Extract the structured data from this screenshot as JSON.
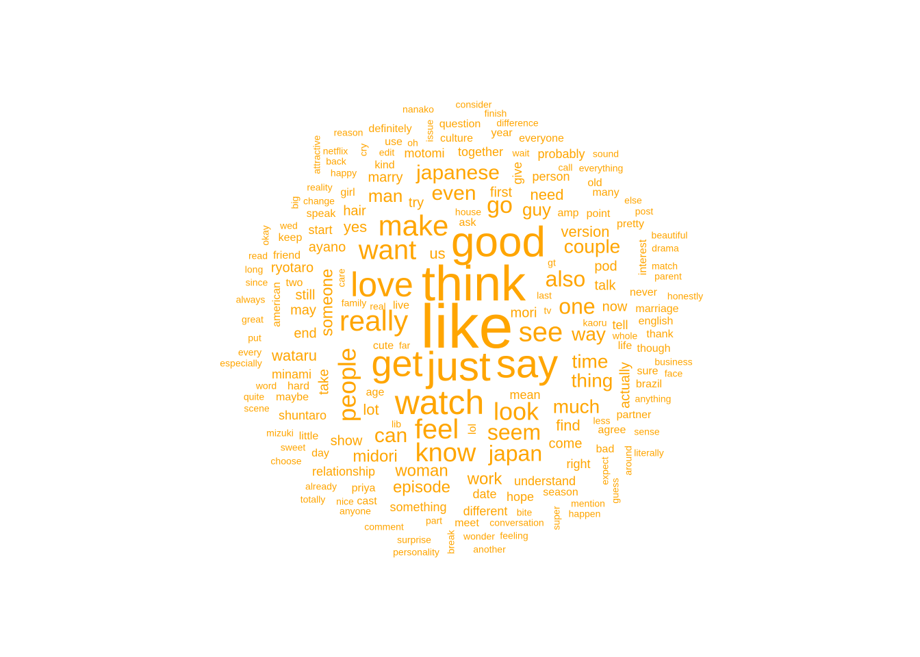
{
  "color": "#FFA500",
  "words": [
    {
      "t": "like",
      "s": 90
    },
    {
      "t": "think",
      "s": 72
    },
    {
      "t": "good",
      "s": 62
    },
    {
      "t": "just",
      "s": 60
    },
    {
      "t": "say",
      "s": 58
    },
    {
      "t": "get",
      "s": 54
    },
    {
      "t": "watch",
      "s": 50
    },
    {
      "t": "love",
      "s": 50
    },
    {
      "t": "make",
      "s": 42
    },
    {
      "t": "really",
      "s": 42
    },
    {
      "t": "want",
      "s": 40
    },
    {
      "t": "feel",
      "s": 40
    },
    {
      "t": "see",
      "s": 40
    },
    {
      "t": "know",
      "s": 38
    },
    {
      "t": "look",
      "s": 36
    },
    {
      "t": "people",
      "s": 36
    },
    {
      "t": "go",
      "s": 34
    },
    {
      "t": "seem",
      "s": 32
    },
    {
      "t": "japan",
      "s": 32
    },
    {
      "t": "also",
      "s": 32
    },
    {
      "t": "one",
      "s": 32
    },
    {
      "t": "japanese",
      "s": 30
    },
    {
      "t": "even",
      "s": 30
    },
    {
      "t": "can",
      "s": 30
    },
    {
      "t": "much",
      "s": 28
    },
    {
      "t": "couple",
      "s": 28
    },
    {
      "t": "time",
      "s": 28
    },
    {
      "t": "thing",
      "s": 28
    },
    {
      "t": "way",
      "s": 28
    },
    {
      "t": "guy",
      "s": 26
    },
    {
      "t": "man",
      "s": 26
    },
    {
      "t": "someone",
      "s": 24
    },
    {
      "t": "midori",
      "s": 24
    },
    {
      "t": "episode",
      "s": 24
    },
    {
      "t": "woman",
      "s": 24
    },
    {
      "t": "work",
      "s": 24
    },
    {
      "t": "wataru",
      "s": 22
    },
    {
      "t": "yes",
      "s": 22
    },
    {
      "t": "us",
      "s": 22
    },
    {
      "t": "lot",
      "s": 22
    },
    {
      "t": "need",
      "s": 22
    },
    {
      "t": "version",
      "s": 22
    },
    {
      "t": "find",
      "s": 22
    },
    {
      "t": "come",
      "s": 20
    },
    {
      "t": "pod",
      "s": 20
    },
    {
      "t": "take",
      "s": 20
    },
    {
      "t": "actually",
      "s": 20
    },
    {
      "t": "show",
      "s": 20
    },
    {
      "t": "marry",
      "s": 20
    },
    {
      "t": "try",
      "s": 20
    },
    {
      "t": "mori",
      "s": 20
    },
    {
      "t": "talk",
      "s": 20
    },
    {
      "t": "now",
      "s": 20
    },
    {
      "t": "first",
      "s": 20
    },
    {
      "t": "hair",
      "s": 20
    },
    {
      "t": "ayano",
      "s": 20
    },
    {
      "t": "ryotaro",
      "s": 20
    },
    {
      "t": "may",
      "s": 20
    },
    {
      "t": "end",
      "s": 20
    },
    {
      "t": "still",
      "s": 20
    },
    {
      "t": "minami",
      "s": 18
    },
    {
      "t": "shuntaro",
      "s": 18
    },
    {
      "t": "relationship",
      "s": 18
    },
    {
      "t": "something",
      "s": 18
    },
    {
      "t": "different",
      "s": 18
    },
    {
      "t": "understand",
      "s": 18
    },
    {
      "t": "date",
      "s": 18
    },
    {
      "t": "hope",
      "s": 18
    },
    {
      "t": "right",
      "s": 18
    },
    {
      "t": "mean",
      "s": 18
    },
    {
      "t": "start",
      "s": 18
    },
    {
      "t": "motomi",
      "s": 18
    },
    {
      "t": "together",
      "s": 18
    },
    {
      "t": "probably",
      "s": 18
    },
    {
      "t": "person",
      "s": 18
    },
    {
      "t": "tell",
      "s": 18
    },
    {
      "t": "give",
      "s": 18
    },
    {
      "t": "american",
      "s": 16
    },
    {
      "t": "maybe",
      "s": 16
    },
    {
      "t": "marriage",
      "s": 16
    },
    {
      "t": "cute",
      "s": 16
    },
    {
      "t": "lol",
      "s": 16
    },
    {
      "t": "bad",
      "s": 16
    },
    {
      "t": "agree",
      "s": 16
    },
    {
      "t": "partner",
      "s": 16
    },
    {
      "t": "season",
      "s": 16
    },
    {
      "t": "meet",
      "s": 16
    },
    {
      "t": "priya",
      "s": 16
    },
    {
      "t": "day",
      "s": 16
    },
    {
      "t": "age",
      "s": 16
    },
    {
      "t": "live",
      "s": 16
    },
    {
      "t": "ask",
      "s": 16
    },
    {
      "t": "amp",
      "s": 16
    },
    {
      "t": "point",
      "s": 16
    },
    {
      "t": "pretty",
      "s": 16
    },
    {
      "t": "old",
      "s": 16
    },
    {
      "t": "many",
      "s": 16
    },
    {
      "t": "speak",
      "s": 16
    },
    {
      "t": "girl",
      "s": 16
    },
    {
      "t": "friend",
      "s": 16
    },
    {
      "t": "keep",
      "s": 16
    },
    {
      "t": "two",
      "s": 16
    },
    {
      "t": "hard",
      "s": 16
    },
    {
      "t": "little",
      "s": 16
    },
    {
      "t": "kind",
      "s": 16
    },
    {
      "t": "use",
      "s": 16
    },
    {
      "t": "definitely",
      "s": 16
    },
    {
      "t": "question",
      "s": 16
    },
    {
      "t": "culture",
      "s": 16
    },
    {
      "t": "year",
      "s": 16
    },
    {
      "t": "everyone",
      "s": 16
    },
    {
      "t": "english",
      "s": 16
    },
    {
      "t": "thank",
      "s": 16
    },
    {
      "t": "though",
      "s": 16
    },
    {
      "t": "sure",
      "s": 16
    },
    {
      "t": "brazil",
      "s": 16
    },
    {
      "t": "interest",
      "s": 16
    },
    {
      "t": "never",
      "s": 16
    },
    {
      "t": "life",
      "s": 16
    },
    {
      "t": "cast",
      "s": 16
    },
    {
      "t": "happy",
      "s": 14
    },
    {
      "t": "back",
      "s": 14
    },
    {
      "t": "netflix",
      "s": 14
    },
    {
      "t": "cry",
      "s": 14
    },
    {
      "t": "edit",
      "s": 14
    },
    {
      "t": "reality",
      "s": 14
    },
    {
      "t": "change",
      "s": 14
    },
    {
      "t": "big",
      "s": 14
    },
    {
      "t": "wed",
      "s": 14
    },
    {
      "t": "okay",
      "s": 14
    },
    {
      "t": "read",
      "s": 14
    },
    {
      "t": "long",
      "s": 14
    },
    {
      "t": "since",
      "s": 14
    },
    {
      "t": "always",
      "s": 14
    },
    {
      "t": "family",
      "s": 14
    },
    {
      "t": "real",
      "s": 14
    },
    {
      "t": "great",
      "s": 14
    },
    {
      "t": "put",
      "s": 14
    },
    {
      "t": "every",
      "s": 14
    },
    {
      "t": "especially",
      "s": 14
    },
    {
      "t": "word",
      "s": 14
    },
    {
      "t": "quite",
      "s": 14
    },
    {
      "t": "scene",
      "s": 14
    },
    {
      "t": "mizuki",
      "s": 14
    },
    {
      "t": "sweet",
      "s": 14
    },
    {
      "t": "choose",
      "s": 14
    },
    {
      "t": "already",
      "s": 14
    },
    {
      "t": "totally",
      "s": 14
    },
    {
      "t": "nice",
      "s": 14
    },
    {
      "t": "anyone",
      "s": 14
    },
    {
      "t": "comment",
      "s": 14
    },
    {
      "t": "surprise",
      "s": 14
    },
    {
      "t": "personality",
      "s": 14
    },
    {
      "t": "break",
      "s": 14
    },
    {
      "t": "another",
      "s": 14
    },
    {
      "t": "wonder",
      "s": 14
    },
    {
      "t": "feeling",
      "s": 14
    },
    {
      "t": "part",
      "s": 14
    },
    {
      "t": "conversation",
      "s": 14
    },
    {
      "t": "bite",
      "s": 14
    },
    {
      "t": "super",
      "s": 14
    },
    {
      "t": "mention",
      "s": 14
    },
    {
      "t": "happen",
      "s": 14
    },
    {
      "t": "expect",
      "s": 14
    },
    {
      "t": "guess",
      "s": 14
    },
    {
      "t": "around",
      "s": 14
    },
    {
      "t": "literally",
      "s": 14
    },
    {
      "t": "sense",
      "s": 14
    },
    {
      "t": "anything",
      "s": 14
    },
    {
      "t": "face",
      "s": 14
    },
    {
      "t": "business",
      "s": 14
    },
    {
      "t": "honestly",
      "s": 14
    },
    {
      "t": "parent",
      "s": 14
    },
    {
      "t": "match",
      "s": 14
    },
    {
      "t": "drama",
      "s": 14
    },
    {
      "t": "beautiful",
      "s": 14
    },
    {
      "t": "post",
      "s": 14
    },
    {
      "t": "else",
      "s": 14
    },
    {
      "t": "sound",
      "s": 14
    },
    {
      "t": "everything",
      "s": 14
    },
    {
      "t": "call",
      "s": 14
    },
    {
      "t": "wait",
      "s": 14
    },
    {
      "t": "difference",
      "s": 14
    },
    {
      "t": "finish",
      "s": 14
    },
    {
      "t": "consider",
      "s": 14
    },
    {
      "t": "nanako",
      "s": 14
    },
    {
      "t": "reason",
      "s": 14
    },
    {
      "t": "oh",
      "s": 14
    },
    {
      "t": "issue",
      "s": 14
    },
    {
      "t": "attractive",
      "s": 14
    },
    {
      "t": "care",
      "s": 14
    },
    {
      "t": "gt",
      "s": 14
    },
    {
      "t": "tv",
      "s": 14
    },
    {
      "t": "last",
      "s": 14
    },
    {
      "t": "kaoru",
      "s": 14
    },
    {
      "t": "whole",
      "s": 14
    },
    {
      "t": "far",
      "s": 14
    },
    {
      "t": "lib",
      "s": 14
    },
    {
      "t": "less",
      "s": 14
    },
    {
      "t": "house",
      "s": 14
    }
  ]
}
